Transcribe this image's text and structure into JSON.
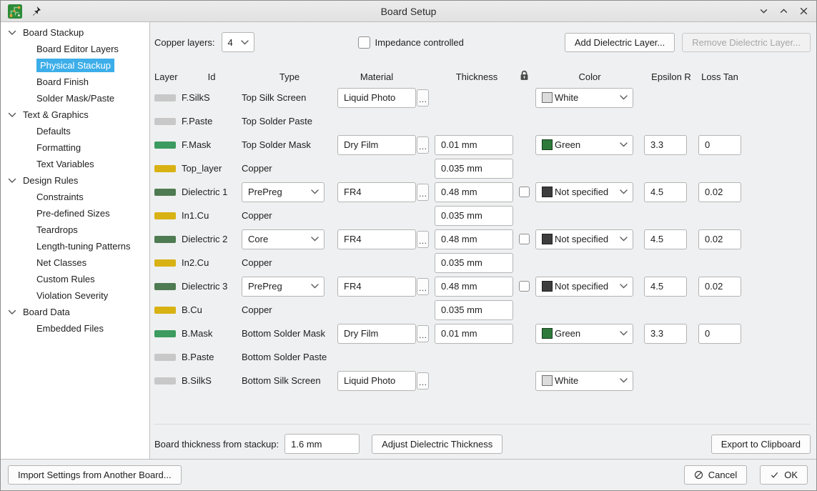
{
  "window": {
    "title": "Board Setup"
  },
  "sidebar": {
    "sections": [
      {
        "label": "Board Stackup",
        "children": [
          {
            "label": "Board Editor Layers"
          },
          {
            "label": "Physical Stackup",
            "selected": true
          },
          {
            "label": "Board Finish"
          },
          {
            "label": "Solder Mask/Paste"
          }
        ]
      },
      {
        "label": "Text & Graphics",
        "children": [
          {
            "label": "Defaults"
          },
          {
            "label": "Formatting"
          },
          {
            "label": "Text Variables"
          }
        ]
      },
      {
        "label": "Design Rules",
        "children": [
          {
            "label": "Constraints"
          },
          {
            "label": "Pre-defined Sizes"
          },
          {
            "label": "Teardrops"
          },
          {
            "label": "Length-tuning Patterns"
          },
          {
            "label": "Net Classes"
          },
          {
            "label": "Custom Rules"
          },
          {
            "label": "Violation Severity"
          }
        ]
      },
      {
        "label": "Board Data",
        "children": [
          {
            "label": "Embedded Files"
          }
        ]
      }
    ]
  },
  "toolbar": {
    "copper_layers_label": "Copper layers:",
    "copper_layers_value": "4",
    "impedance_label": "Impedance controlled",
    "impedance_checked": false,
    "add_button": "Add Dielectric Layer...",
    "remove_button": "Remove Dielectric Layer...",
    "remove_enabled": false
  },
  "table": {
    "headers": {
      "layer": "Layer",
      "id": "Id",
      "type": "Type",
      "material": "Material",
      "thickness": "Thickness",
      "lock": "lock-icon",
      "color": "Color",
      "epsilon": "Epsilon R",
      "loss": "Loss Tan"
    },
    "rows": [
      {
        "id": "F.SilkS",
        "swatch": "silk",
        "type": "Top Silk Screen",
        "material": "Liquid Photo",
        "color": {
          "label": "White",
          "swatch": "white"
        }
      },
      {
        "id": "F.Paste",
        "swatch": "silk",
        "type": "Top Solder Paste"
      },
      {
        "id": "F.Mask",
        "swatch": "mask",
        "type": "Top Solder Mask",
        "material": "Dry Film",
        "thickness": "0.01 mm",
        "color": {
          "label": "Green",
          "swatch": "green"
        },
        "epsilon": "3.3",
        "loss": "0"
      },
      {
        "id": "Top_layer",
        "swatch": "copper",
        "type": "Copper",
        "thickness": "0.035 mm"
      },
      {
        "id": "Dielectric 1",
        "swatch": "dielectric",
        "type_select": "PrePreg",
        "material": "FR4",
        "thickness": "0.48 mm",
        "lock_checkbox": true,
        "color": {
          "label": "Not specified",
          "swatch": "notspec"
        },
        "epsilon": "4.5",
        "loss": "0.02"
      },
      {
        "id": "In1.Cu",
        "swatch": "copper",
        "type": "Copper",
        "thickness": "0.035 mm"
      },
      {
        "id": "Dielectric 2",
        "swatch": "dielectric",
        "type_select": "Core",
        "material": "FR4",
        "thickness": "0.48 mm",
        "lock_checkbox": true,
        "color": {
          "label": "Not specified",
          "swatch": "notspec"
        },
        "epsilon": "4.5",
        "loss": "0.02"
      },
      {
        "id": "In2.Cu",
        "swatch": "copper",
        "type": "Copper",
        "thickness": "0.035 mm"
      },
      {
        "id": "Dielectric 3",
        "swatch": "dielectric",
        "type_select": "PrePreg",
        "material": "FR4",
        "thickness": "0.48 mm",
        "lock_checkbox": true,
        "color": {
          "label": "Not specified",
          "swatch": "notspec"
        },
        "epsilon": "4.5",
        "loss": "0.02"
      },
      {
        "id": "B.Cu",
        "swatch": "copper",
        "type": "Copper",
        "thickness": "0.035 mm"
      },
      {
        "id": "B.Mask",
        "swatch": "mask",
        "type": "Bottom Solder Mask",
        "material": "Dry Film",
        "thickness": "0.01 mm",
        "color": {
          "label": "Green",
          "swatch": "green"
        },
        "epsilon": "3.3",
        "loss": "0"
      },
      {
        "id": "B.Paste",
        "swatch": "silk",
        "type": "Bottom Solder Paste"
      },
      {
        "id": "B.SilkS",
        "swatch": "silk",
        "type": "Bottom Silk Screen",
        "material": "Liquid Photo",
        "color": {
          "label": "White",
          "swatch": "white"
        }
      }
    ]
  },
  "footer": {
    "thickness_label": "Board thickness from stackup:",
    "thickness_value": "1.6 mm",
    "adjust_button": "Adjust Dielectric Thickness",
    "export_button": "Export to Clipboard"
  },
  "dialog": {
    "import_button": "Import Settings from Another Board...",
    "cancel_button": "Cancel",
    "ok_button": "OK"
  },
  "colors": {
    "accent": "#3daee9",
    "swatches": {
      "silk": "#c8c8c8",
      "mask": "#3c9b5f",
      "copper": "#d8b213",
      "dielectric": "#4f7b52"
    },
    "option_swatches": {
      "white": "#dcdcdc",
      "green": "#2f7a3b",
      "notspec": "#3d3d3d"
    }
  }
}
